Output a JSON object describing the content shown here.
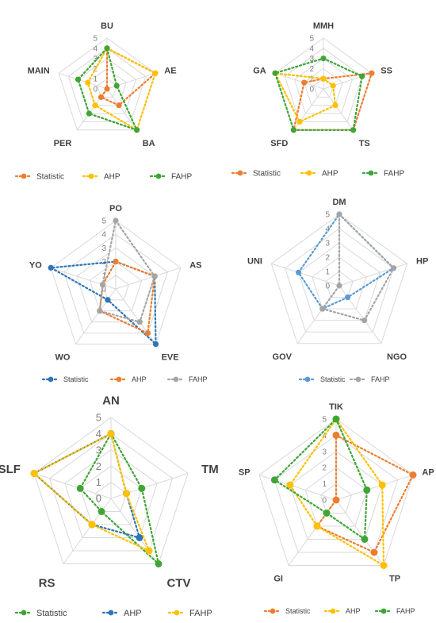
{
  "colors": {
    "statistic_orange": "#ED7D31",
    "ahp_yellow": "#FFC000",
    "fahp_green": "#3FA535",
    "statistic_blue": "#2E75B6",
    "gray": "#A5A5A5",
    "grid": "#D9D9D9"
  },
  "chart_data": [
    {
      "type": "radar",
      "axes": [
        "BU",
        "AE",
        "BA",
        "PER",
        "MAIN"
      ],
      "ticks": [
        "0",
        "1",
        "2",
        "3",
        "4",
        "5"
      ],
      "range": [
        0,
        5
      ],
      "series": [
        {
          "name": "Statistic",
          "color": "#ED7D31",
          "values": [
            4,
            5,
            2,
            1,
            0
          ]
        },
        {
          "name": "AHP",
          "color": "#FFC000",
          "values": [
            4,
            5,
            5,
            2,
            2
          ]
        },
        {
          "name": "FAHP",
          "color": "#3FA535",
          "values": [
            4,
            1,
            5,
            3,
            3
          ]
        }
      ]
    },
    {
      "type": "radar",
      "axes": [
        "MMH",
        "SS",
        "TS",
        "SFD",
        "GA"
      ],
      "ticks": [
        "0",
        "1",
        "2",
        "3",
        "4",
        "5"
      ],
      "range": [
        0,
        5
      ],
      "series": [
        {
          "name": "Statistic",
          "color": "#ED7D31",
          "values": [
            1,
            5,
            5,
            5,
            2
          ]
        },
        {
          "name": "AHP",
          "color": "#FFC000",
          "values": [
            1,
            1,
            2,
            4,
            5
          ]
        },
        {
          "name": "FAHP",
          "color": "#3FA535",
          "values": [
            3,
            4,
            5,
            5,
            5
          ]
        }
      ]
    },
    {
      "type": "radar",
      "axes": [
        "PO",
        "AS",
        "EVE",
        "WO",
        "YO"
      ],
      "ticks": [
        "0",
        "1",
        "2",
        "3",
        "4",
        "5"
      ],
      "range": [
        0,
        5
      ],
      "series": [
        {
          "name": "Statistic",
          "color": "#2E75B6",
          "values": [
            2,
            3,
            5,
            1,
            5
          ]
        },
        {
          "name": "AHP",
          "color": "#ED7D31",
          "values": [
            2,
            3,
            4,
            2,
            1
          ]
        },
        {
          "name": "FAHP",
          "color": "#A5A5A5",
          "values": [
            5,
            3,
            3,
            2,
            1
          ]
        }
      ]
    },
    {
      "type": "radar",
      "axes": [
        "DM",
        "HP",
        "NGO",
        "GOV",
        "UNI"
      ],
      "ticks": [
        "0",
        "1",
        "2",
        "3",
        "4",
        "5"
      ],
      "range": [
        0,
        5
      ],
      "series": [
        {
          "name": "Statistic",
          "color": "#5B9BD5",
          "values": [
            5,
            4,
            1,
            2,
            3
          ]
        },
        {
          "name": "FAHP",
          "color": "#A5A5A5",
          "values": [
            5,
            4,
            3,
            2,
            0
          ]
        }
      ]
    },
    {
      "type": "radar",
      "axes": [
        "AN",
        "TM",
        "CTV",
        "RS",
        "SLF"
      ],
      "ticks": [
        "0",
        "1",
        "2",
        "3",
        "4",
        "5"
      ],
      "range": [
        0,
        5
      ],
      "series": [
        {
          "name": "Statistic",
          "color": "#3FA535",
          "values": [
            4,
            2,
            5,
            1,
            2
          ]
        },
        {
          "name": "AHP",
          "color": "#2E75B6",
          "values": [
            4,
            1,
            3,
            2,
            5
          ]
        },
        {
          "name": "FAHP",
          "color": "#FFC000",
          "values": [
            4,
            1,
            4,
            2,
            5
          ]
        }
      ]
    },
    {
      "type": "radar",
      "axes": [
        "TIK",
        "AP",
        "TP",
        "GI",
        "SP"
      ],
      "ticks": [
        "0",
        "1",
        "2",
        "3",
        "4",
        "5"
      ],
      "range": [
        0,
        5
      ],
      "series": [
        {
          "name": "Statistic",
          "color": "#ED7D31",
          "values": [
            4,
            5,
            4,
            2,
            0
          ]
        },
        {
          "name": "AHP",
          "color": "#FFC000",
          "values": [
            5,
            3,
            5,
            2,
            3
          ]
        },
        {
          "name": "FAHP",
          "color": "#3FA535",
          "values": [
            5,
            2,
            3,
            1,
            4
          ]
        }
      ]
    }
  ]
}
